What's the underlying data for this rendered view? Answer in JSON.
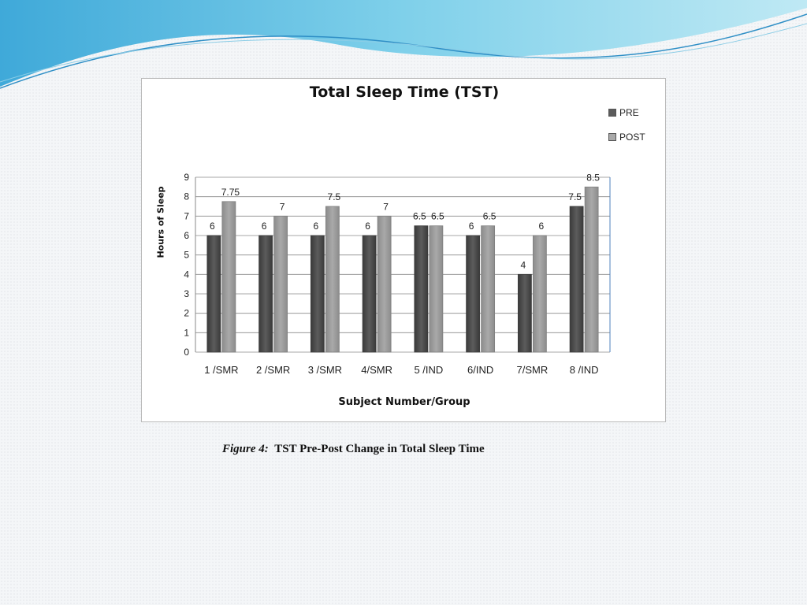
{
  "caption": {
    "label": "Figure 4:",
    "text": "TST Pre-Post Change in Total Sleep Time"
  },
  "chart_data": {
    "type": "bar",
    "title": "Total Sleep Time (TST)",
    "xlabel": "Subject Number/Group",
    "ylabel": "Hours of Sleep",
    "ylim": [
      0,
      9
    ],
    "yticks": [
      "0",
      "1",
      "2",
      "3",
      "4",
      "5",
      "6",
      "7",
      "8",
      "9"
    ],
    "grid": true,
    "legend_position": "top-right",
    "categories": [
      "1 /SMR",
      "2 /SMR",
      "3 /SMR",
      "4/SMR",
      "5 /IND",
      "6/IND",
      "7/SMR",
      "8 /IND"
    ],
    "series": [
      {
        "name": "PRE",
        "color": "#5c5c5c",
        "values": [
          6,
          6,
          6,
          6,
          6.5,
          6,
          4,
          7.5
        ],
        "labels": [
          "6",
          "6",
          "6",
          "6",
          "6.5",
          "6",
          "4",
          "7.5"
        ]
      },
      {
        "name": "POST",
        "color": "#a9a9a9",
        "values": [
          7.75,
          7,
          7.5,
          7,
          6.5,
          6.5,
          6,
          8.5
        ],
        "labels": [
          "7.75",
          "7",
          "7.5",
          "7",
          "6.5",
          "6.5",
          "6",
          "8.5"
        ]
      }
    ]
  }
}
